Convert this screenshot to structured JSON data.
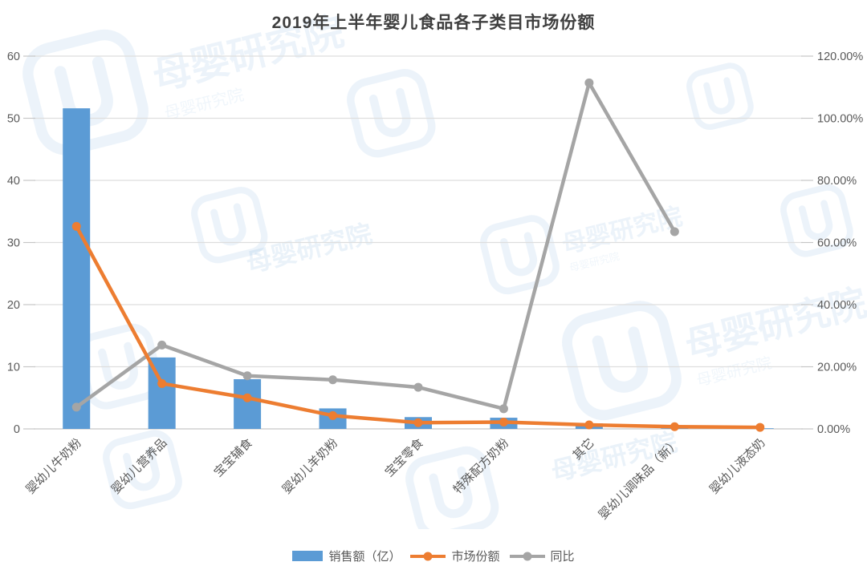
{
  "chart_data": {
    "type": "combo-bar-line",
    "title": "2019年上半年婴儿食品各子类目市场份额",
    "categories": [
      "婴幼儿牛奶粉",
      "婴幼儿营养品",
      "宝宝辅食",
      "婴幼儿羊奶粉",
      "宝宝零食",
      "特殊配方奶粉",
      "其它",
      "婴幼儿调味品（新）",
      "婴幼儿液态奶"
    ],
    "series": [
      {
        "name": "销售额（亿）",
        "type": "bar",
        "axis": "left",
        "color": "#5B9BD5",
        "values": [
          51.6,
          11.5,
          8.0,
          3.3,
          1.9,
          1.8,
          0.9,
          0.1,
          0.1
        ]
      },
      {
        "name": "市场份额",
        "type": "line",
        "axis": "right",
        "color": "#ED7D31",
        "values": [
          65.2,
          14.6,
          10.0,
          4.3,
          2.0,
          2.2,
          1.3,
          0.7,
          0.5
        ]
      },
      {
        "name": "同比",
        "type": "line",
        "axis": "right",
        "color": "#A5A5A5",
        "values": [
          7.0,
          27.0,
          17.1,
          15.8,
          13.4,
          6.5,
          111.4,
          63.5,
          null
        ]
      }
    ],
    "left_axis": {
      "min": 0,
      "max": 60,
      "step": 10,
      "tick_labels": [
        "0",
        "10",
        "20",
        "30",
        "40",
        "50",
        "60"
      ]
    },
    "right_axis": {
      "min": 0,
      "max": 120,
      "step": 20,
      "tick_labels": [
        "0.00%",
        "20.00%",
        "40.00%",
        "60.00%",
        "80.00%",
        "100.00%",
        "120.00%"
      ]
    },
    "grid": true,
    "legend_position": "bottom"
  },
  "watermark": {
    "text": "母婴研究院",
    "color": "#5B9BD5"
  }
}
